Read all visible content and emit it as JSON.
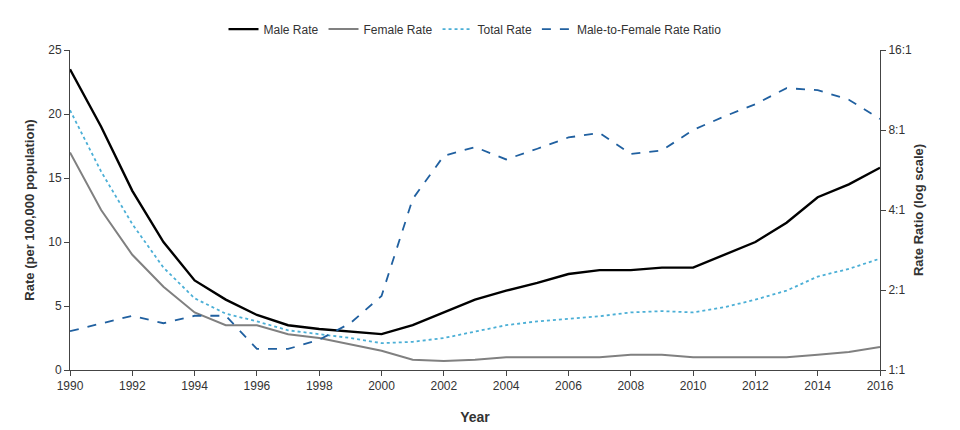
{
  "chart_data": {
    "type": "line",
    "x": [
      1990,
      1991,
      1992,
      1993,
      1994,
      1995,
      1996,
      1997,
      1998,
      1999,
      2000,
      2001,
      2002,
      2003,
      2004,
      2005,
      2006,
      2007,
      2008,
      2009,
      2010,
      2011,
      2012,
      2013,
      2014,
      2015,
      2016
    ],
    "series": [
      {
        "name": "Male Rate",
        "color": "#000000",
        "line_style": "solid",
        "values": [
          23.5,
          19.0,
          14.0,
          10.0,
          7.0,
          5.5,
          4.3,
          3.5,
          3.2,
          3.0,
          2.8,
          3.5,
          4.5,
          5.5,
          6.2,
          6.8,
          7.5,
          7.8,
          7.8,
          8.0,
          8.0,
          9.0,
          10.0,
          11.5,
          13.5,
          14.5,
          15.8
        ]
      },
      {
        "name": "Female Rate",
        "color": "#808080",
        "line_style": "solid",
        "values": [
          17.0,
          12.5,
          9.0,
          6.5,
          4.5,
          3.5,
          3.5,
          2.8,
          2.5,
          2.0,
          1.5,
          0.8,
          0.7,
          0.8,
          1.0,
          1.0,
          1.0,
          1.0,
          1.2,
          1.2,
          1.0,
          1.0,
          1.0,
          1.0,
          1.2,
          1.4,
          1.8
        ]
      },
      {
        "name": "Total Rate",
        "color": "#4bafd6",
        "line_style": "dotted",
        "values": [
          20.3,
          15.5,
          11.4,
          8.0,
          5.6,
          4.4,
          3.8,
          3.1,
          2.8,
          2.5,
          2.1,
          2.2,
          2.5,
          3.0,
          3.5,
          3.8,
          4.0,
          4.2,
          4.5,
          4.6,
          4.5,
          4.9,
          5.5,
          6.2,
          7.3,
          7.9,
          8.7
        ]
      },
      {
        "name": "Male-to-Female Rate Ratio",
        "color": "#2060a0",
        "line_style": "dashed",
        "axis": "y2",
        "values": [
          1.4,
          1.5,
          1.6,
          1.5,
          1.6,
          1.6,
          1.2,
          1.2,
          1.3,
          1.5,
          1.9,
          4.4,
          6.4,
          6.9,
          6.2,
          6.8,
          7.5,
          7.8,
          6.5,
          6.7,
          8.0,
          9.0,
          10.0,
          11.5,
          11.3,
          10.4,
          8.8
        ]
      }
    ],
    "xlabel": "Year",
    "ylabel": "Rate (per 100,000 population)",
    "y2label": "Rate Ratio (log scale)",
    "xlim": [
      1990,
      2016
    ],
    "xticks": [
      1990,
      1992,
      1994,
      1996,
      1998,
      2000,
      2002,
      2004,
      2006,
      2008,
      2010,
      2012,
      2014,
      2016
    ],
    "ylim": [
      0,
      25
    ],
    "yticks": [
      0,
      5,
      10,
      15,
      20,
      25
    ],
    "y2lim": [
      1,
      16
    ],
    "y2ticks": [
      {
        "value": 1,
        "label": "1:1"
      },
      {
        "value": 2,
        "label": "2:1"
      },
      {
        "value": 4,
        "label": "4:1"
      },
      {
        "value": 8,
        "label": "8:1"
      },
      {
        "value": 16,
        "label": "16:1"
      }
    ],
    "log": "y2",
    "grid": false,
    "legend": "top"
  }
}
